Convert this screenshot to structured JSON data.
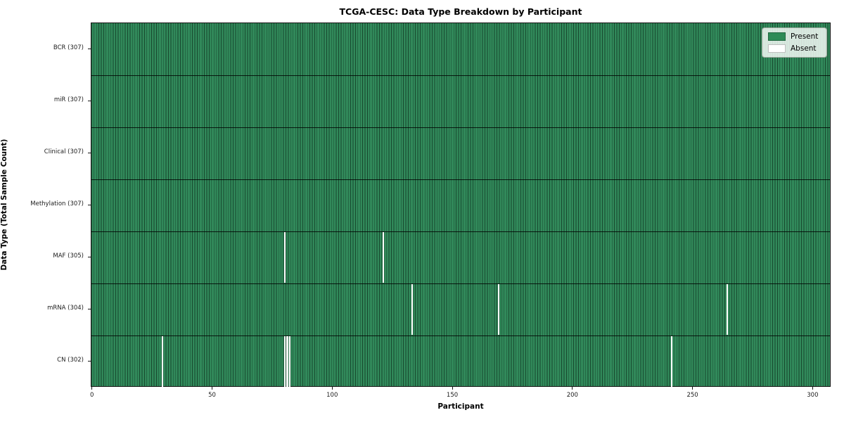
{
  "chart_data": {
    "type": "heatmap",
    "title": "TCGA-CESC: Data Type Breakdown by Participant",
    "xlabel": "Participant",
    "ylabel": "Data Type (Total Sample Count)",
    "x_ticks": [
      0,
      50,
      100,
      150,
      200,
      250,
      300
    ],
    "x_range": [
      -0.5,
      307.5
    ],
    "n_participants": 307,
    "grid": false,
    "legend_position": "upper right",
    "colors": {
      "present": "#2e8b57",
      "absent": "#ffffff",
      "cell_edge": "#1a3524"
    },
    "legend": [
      {
        "label": "Present",
        "color": "#2e8b57"
      },
      {
        "label": "Absent",
        "color": "#ffffff"
      }
    ],
    "rows": [
      {
        "label": "BCR (307)",
        "data_type": "BCR",
        "present_count": 307,
        "absent_participants": []
      },
      {
        "label": "miR (307)",
        "data_type": "miR",
        "present_count": 307,
        "absent_participants": []
      },
      {
        "label": "Clinical (307)",
        "data_type": "Clinical",
        "present_count": 307,
        "absent_participants": []
      },
      {
        "label": "Methylation (307)",
        "data_type": "Methylation",
        "present_count": 307,
        "absent_participants": []
      },
      {
        "label": "MAF (305)",
        "data_type": "MAF",
        "present_count": 305,
        "absent_participants": [
          80,
          121
        ]
      },
      {
        "label": "mRNA (304)",
        "data_type": "mRNA",
        "present_count": 304,
        "absent_participants": [
          133,
          169,
          264
        ]
      },
      {
        "label": "CN (302)",
        "data_type": "CN",
        "present_count": 302,
        "absent_participants": [
          29,
          80,
          81,
          82,
          241
        ]
      }
    ]
  }
}
